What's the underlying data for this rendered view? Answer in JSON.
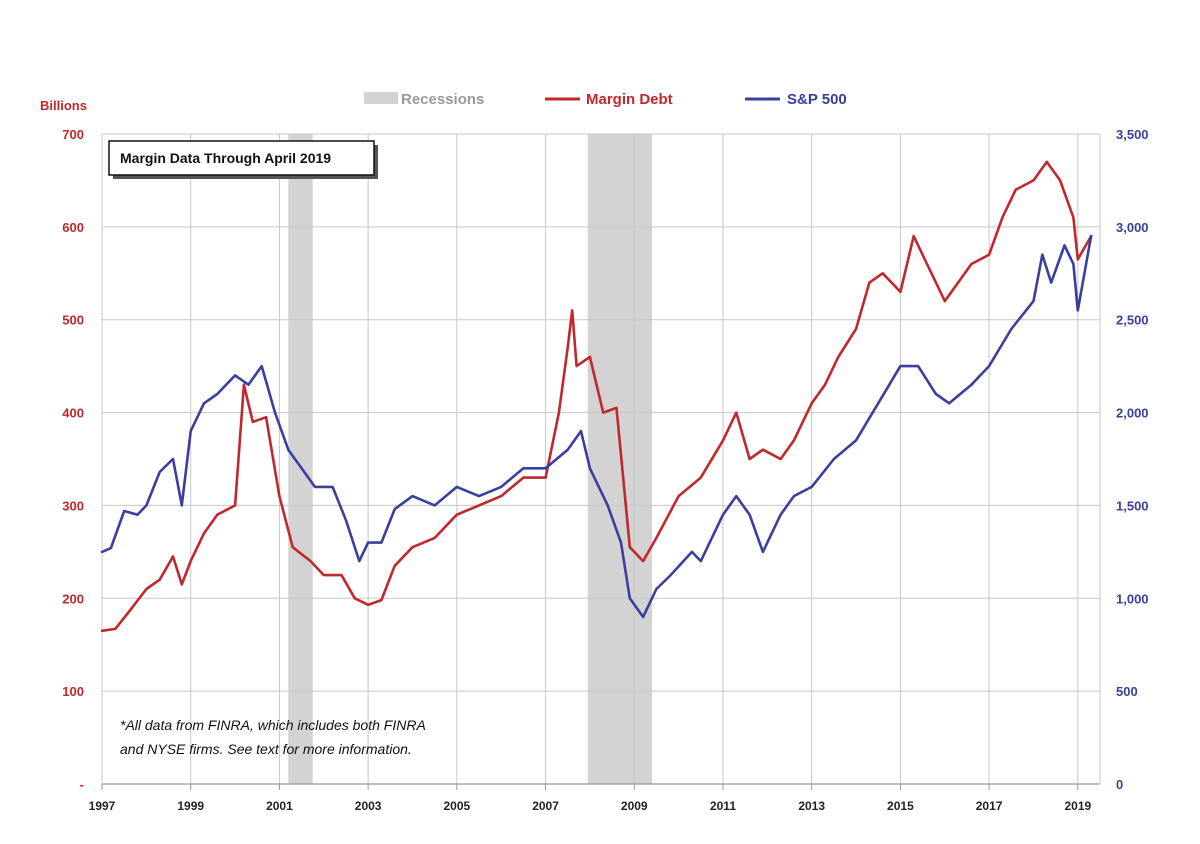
{
  "chart_data": {
    "type": "line",
    "title": "Margin Data Through April 2019",
    "left_axis_label": "Billions",
    "note_lines": [
      "*All data from FINRA, which includes both FINRA",
      "and NYSE firms. See text for more information."
    ],
    "legend": {
      "recessions": "Recessions",
      "margin_debt": "Margin Debt",
      "sp500": "S&P 500"
    },
    "colors": {
      "margin_debt": "#c0282d",
      "sp500": "#3a3f9e",
      "recession": "#d3d3d3",
      "grid": "#c8c8c8"
    },
    "x_range": [
      1997.0,
      2019.5
    ],
    "x_ticks": [
      "1997",
      "1999",
      "2001",
      "2003",
      "2005",
      "2007",
      "2009",
      "2011",
      "2013",
      "2015",
      "2017",
      "2019"
    ],
    "y_left": {
      "range": [
        0,
        700
      ],
      "ticks": [
        {
          "value": 0,
          "label": "-"
        },
        {
          "value": 100,
          "label": "100"
        },
        {
          "value": 200,
          "label": "200"
        },
        {
          "value": 300,
          "label": "300"
        },
        {
          "value": 400,
          "label": "400"
        },
        {
          "value": 500,
          "label": "500"
        },
        {
          "value": 600,
          "label": "600"
        },
        {
          "value": 700,
          "label": "700"
        }
      ]
    },
    "y_right": {
      "range": [
        0,
        3500
      ],
      "ticks": [
        {
          "value": 0,
          "label": "0"
        },
        {
          "value": 500,
          "label": "500"
        },
        {
          "value": 1000,
          "label": "1,000"
        },
        {
          "value": 1500,
          "label": "1,500"
        },
        {
          "value": 2000,
          "label": "2,000"
        },
        {
          "value": 2500,
          "label": "2,500"
        },
        {
          "value": 3000,
          "label": "3,000"
        },
        {
          "value": 3500,
          "label": "3,500"
        }
      ]
    },
    "recessions": [
      [
        2001.2,
        2001.75
      ],
      [
        2007.95,
        2009.4
      ]
    ],
    "series": [
      {
        "name": "Margin Debt",
        "axis": "left",
        "x": [
          1997.0,
          1997.3,
          1997.6,
          1998.0,
          1998.3,
          1998.6,
          1998.8,
          1999.0,
          1999.3,
          1999.6,
          2000.0,
          2000.2,
          2000.4,
          2000.7,
          2001.0,
          2001.3,
          2001.7,
          2002.0,
          2002.4,
          2002.7,
          2003.0,
          2003.3,
          2003.6,
          2004.0,
          2004.5,
          2005.0,
          2005.5,
          2006.0,
          2006.5,
          2007.0,
          2007.3,
          2007.5,
          2007.6,
          2007.7,
          2008.0,
          2008.3,
          2008.6,
          2008.9,
          2009.2,
          2009.5,
          2010.0,
          2010.5,
          2011.0,
          2011.3,
          2011.6,
          2011.9,
          2012.3,
          2012.6,
          2013.0,
          2013.3,
          2013.6,
          2014.0,
          2014.3,
          2014.6,
          2015.0,
          2015.3,
          2015.6,
          2016.0,
          2016.3,
          2016.6,
          2017.0,
          2017.3,
          2017.6,
          2018.0,
          2018.3,
          2018.6,
          2018.9,
          2019.0,
          2019.3
        ],
        "values": [
          165,
          167,
          185,
          210,
          220,
          245,
          215,
          240,
          270,
          290,
          300,
          430,
          390,
          395,
          310,
          255,
          240,
          225,
          225,
          200,
          193,
          198,
          235,
          255,
          265,
          290,
          300,
          310,
          330,
          330,
          400,
          470,
          510,
          450,
          460,
          400,
          405,
          255,
          240,
          265,
          310,
          330,
          370,
          400,
          350,
          360,
          350,
          370,
          410,
          430,
          460,
          490,
          540,
          550,
          530,
          590,
          560,
          520,
          540,
          560,
          570,
          610,
          640,
          650,
          670,
          650,
          610,
          565,
          590
        ]
      },
      {
        "name": "S&P 500",
        "axis": "right",
        "x": [
          1997.0,
          1997.2,
          1997.5,
          1997.8,
          1998.0,
          1998.3,
          1998.6,
          1998.8,
          1999.0,
          1999.3,
          1999.6,
          2000.0,
          2000.3,
          2000.6,
          2000.9,
          2001.2,
          2001.5,
          2001.8,
          2002.2,
          2002.5,
          2002.8,
          2003.0,
          2003.3,
          2003.6,
          2004.0,
          2004.5,
          2005.0,
          2005.5,
          2006.0,
          2006.5,
          2007.0,
          2007.5,
          2007.8,
          2008.0,
          2008.4,
          2008.7,
          2008.9,
          2009.2,
          2009.5,
          2009.8,
          2010.3,
          2010.5,
          2011.0,
          2011.3,
          2011.6,
          2011.9,
          2012.3,
          2012.6,
          2013.0,
          2013.5,
          2014.0,
          2014.5,
          2015.0,
          2015.4,
          2015.8,
          2016.1,
          2016.6,
          2017.0,
          2017.5,
          2018.0,
          2018.2,
          2018.4,
          2018.7,
          2018.9,
          2019.0,
          2019.3
        ],
        "values": [
          1250,
          1270,
          1470,
          1450,
          1500,
          1680,
          1750,
          1500,
          1900,
          2050,
          2100,
          2200,
          2150,
          2250,
          2000,
          1800,
          1700,
          1600,
          1600,
          1420,
          1200,
          1300,
          1300,
          1480,
          1550,
          1500,
          1600,
          1550,
          1600,
          1700,
          1700,
          1800,
          1900,
          1700,
          1500,
          1300,
          1000,
          900,
          1050,
          1120,
          1250,
          1200,
          1450,
          1550,
          1450,
          1250,
          1450,
          1550,
          1600,
          1750,
          1850,
          2050,
          2250,
          2250,
          2100,
          2050,
          2150,
          2250,
          2450,
          2600,
          2850,
          2700,
          2900,
          2800,
          2550,
          2950
        ]
      }
    ]
  }
}
